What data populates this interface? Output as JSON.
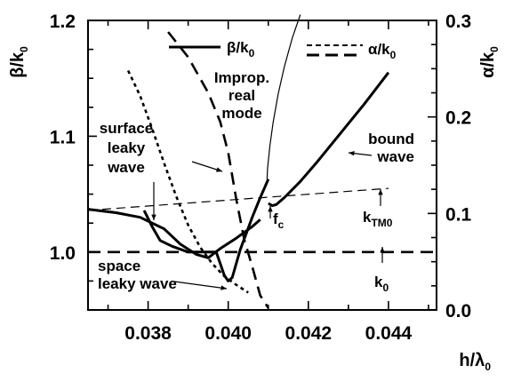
{
  "chart_data": {
    "type": "line",
    "xlabel": "h/λ",
    "xlabel_sub": "0",
    "ylabel_left": "β/k",
    "ylabel_left_sub": "0",
    "ylabel_right": "α/k",
    "ylabel_right_sub": "0",
    "xlim": [
      0.0365,
      0.0452
    ],
    "ylim_left": [
      0.95,
      1.2
    ],
    "ylim_right": [
      0.0,
      0.3
    ],
    "x_ticks": [
      0.038,
      0.04,
      0.042,
      0.044
    ],
    "x_tick_labels": [
      "0.038",
      "0.040",
      "0.042",
      "0.044"
    ],
    "y_left_ticks": [
      1.0,
      1.1,
      1.2
    ],
    "y_left_tick_labels": [
      "1.0",
      "1.1",
      "1.2"
    ],
    "y_right_ticks": [
      0.0,
      0.1,
      0.2,
      0.3
    ],
    "y_right_tick_labels": [
      "0.0",
      "0.1",
      "0.2",
      "0.3"
    ],
    "legend": [
      {
        "label": "β/k",
        "sub": "0",
        "style": "solid"
      },
      {
        "label": "α/k",
        "sub": "0",
        "style": "dashed"
      }
    ],
    "series": [
      {
        "axis": "left",
        "style": "thick",
        "points": [
          [
            0.0365,
            1.037
          ],
          [
            0.0372,
            1.034
          ],
          [
            0.0378,
            1.03
          ],
          [
            0.0384,
            1.02
          ],
          [
            0.0388,
            1.007
          ],
          [
            0.0392,
            0.998
          ],
          [
            0.0395,
            0.995
          ],
          [
            0.0398,
            1.003
          ],
          [
            0.0402,
            1.012
          ],
          [
            0.0406,
            1.022
          ],
          [
            0.0408,
            1.028
          ]
        ]
      },
      {
        "axis": "left",
        "style": "thick",
        "points": [
          [
            0.0379,
            1.036
          ],
          [
            0.0381,
            1.022
          ],
          [
            0.0383,
            1.01
          ],
          [
            0.0386,
            1.005
          ],
          [
            0.039,
            1.0
          ],
          [
            0.0393,
            1.0
          ],
          [
            0.0397,
            1.0
          ],
          [
            0.0398,
            0.99
          ],
          [
            0.0399,
            0.98
          ],
          [
            0.04,
            0.975
          ],
          [
            0.0401,
            0.978
          ],
          [
            0.0403,
            1.002
          ],
          [
            0.0406,
            1.03
          ],
          [
            0.0408,
            1.047
          ],
          [
            0.0409,
            1.055
          ],
          [
            0.041,
            1.063
          ]
        ]
      },
      {
        "axis": "left",
        "style": "thick",
        "points": [
          [
            0.041,
            1.042
          ],
          [
            0.0411,
            1.04
          ],
          [
            0.0412,
            1.041
          ],
          [
            0.0414,
            1.047
          ],
          [
            0.0418,
            1.061
          ],
          [
            0.0422,
            1.077
          ],
          [
            0.0426,
            1.094
          ],
          [
            0.043,
            1.111
          ],
          [
            0.0434,
            1.128
          ],
          [
            0.044,
            1.155
          ]
        ]
      },
      {
        "axis": "left",
        "style": "thin",
        "points": [
          [
            0.04097,
            1.063
          ],
          [
            0.04098,
            1.072
          ],
          [
            0.04104,
            1.092
          ],
          [
            0.04112,
            1.112
          ],
          [
            0.04125,
            1.137
          ],
          [
            0.0414,
            1.16
          ],
          [
            0.0416,
            1.185
          ],
          [
            0.0418,
            1.205
          ]
        ]
      },
      {
        "axis": "left",
        "style": "thin-dashed",
        "name": "k_TM0",
        "points": [
          [
            0.0365,
            1.036
          ],
          [
            0.044,
            1.055
          ]
        ]
      },
      {
        "axis": "left",
        "style": "dashed",
        "name": "k_0",
        "points": [
          [
            0.0365,
            1.0
          ],
          [
            0.0452,
            1.0
          ]
        ]
      },
      {
        "axis": "right",
        "style": "dashed",
        "points": [
          [
            0.0385,
            0.288
          ],
          [
            0.039,
            0.262
          ],
          [
            0.0395,
            0.225
          ],
          [
            0.0398,
            0.195
          ],
          [
            0.04,
            0.163
          ],
          [
            0.0402,
            0.115
          ],
          [
            0.0404,
            0.073
          ],
          [
            0.0406,
            0.045
          ],
          [
            0.0408,
            0.015
          ],
          [
            0.041,
            0.002
          ]
        ]
      },
      {
        "axis": "right",
        "style": "dotted",
        "points": [
          [
            0.0375,
            0.248
          ],
          [
            0.0378,
            0.222
          ],
          [
            0.0381,
            0.188
          ],
          [
            0.0384,
            0.152
          ],
          [
            0.0387,
            0.118
          ],
          [
            0.039,
            0.088
          ],
          [
            0.0393,
            0.065
          ],
          [
            0.0396,
            0.048
          ],
          [
            0.0399,
            0.035
          ],
          [
            0.0402,
            0.026
          ],
          [
            0.0405,
            0.018
          ]
        ]
      }
    ],
    "annotations": [
      {
        "lines": [
          "Improp.",
          "real",
          "mode"
        ]
      },
      {
        "lines": [
          "surface",
          "leaky",
          "wave"
        ]
      },
      {
        "lines": [
          "bound",
          "wave"
        ]
      },
      {
        "lines": [
          "f"
        ],
        "sub": "c"
      },
      {
        "lines": [
          "k"
        ],
        "sub": "TM0"
      },
      {
        "lines": [
          "space",
          "leaky wave"
        ]
      },
      {
        "lines": [
          "k"
        ],
        "sub": "0"
      }
    ]
  }
}
